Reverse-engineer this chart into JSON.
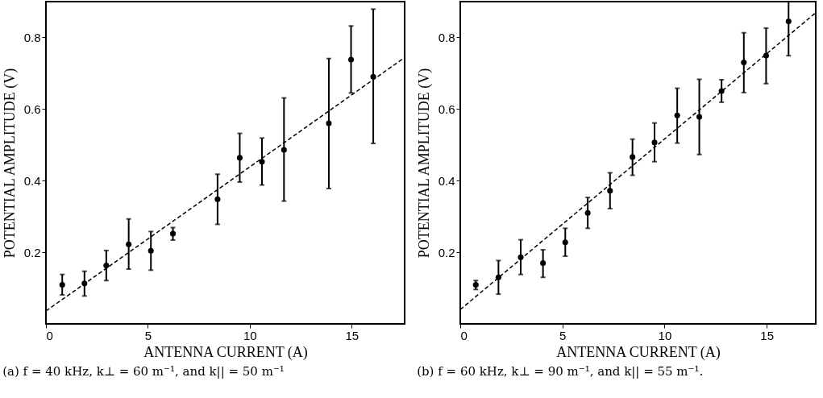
{
  "chart_data": [
    {
      "type": "scatter",
      "title": "(a) f = 40 kHz, k⊥ = 60 m⁻¹, and k|| = 50 m⁻¹",
      "xlabel": "ANTENNA CURRENT (A)",
      "ylabel": "POTENTIAL AMPLITUDE (V)",
      "xlim": [
        0,
        17.6
      ],
      "ylim": [
        0,
        0.9
      ],
      "xticks": [
        0,
        5,
        10,
        15
      ],
      "yticks": [
        0.2,
        0.4,
        0.6,
        0.8
      ],
      "series": [
        {
          "color": "#000000",
          "marker": "circle",
          "x": [
            0.8,
            1.89,
            2.96,
            4.06,
            5.15,
            6.23,
            8.42,
            9.51,
            10.6,
            11.68,
            13.88,
            14.97,
            16.06
          ],
          "values": [
            0.109,
            0.113,
            0.163,
            0.222,
            0.204,
            0.252,
            0.348,
            0.464,
            0.453,
            0.486,
            0.56,
            0.738,
            0.69
          ],
          "errors": [
            [
              0.081,
              0.138
            ],
            [
              0.078,
              0.147
            ],
            [
              0.121,
              0.205
            ],
            [
              0.153,
              0.293
            ],
            [
              0.15,
              0.258
            ],
            [
              0.234,
              0.269
            ],
            [
              0.278,
              0.418
            ],
            [
              0.396,
              0.532
            ],
            [
              0.388,
              0.519
            ],
            [
              0.343,
              0.631
            ],
            [
              0.378,
              0.741
            ],
            [
              0.645,
              0.832
            ],
            [
              0.504,
              0.879
            ]
          ]
        },
        {
          "type": "line",
          "color": "#000000",
          "line_style": "dashed",
          "x": [
            0,
            17.6
          ],
          "values": [
            0.036,
            0.744
          ]
        }
      ]
    },
    {
      "type": "scatter",
      "title": "(b) f = 60 kHz, k⊥ = 90 m⁻¹, and k|| = 55 m⁻¹.",
      "xlabel": "ANTENNA CURRENT (A)",
      "ylabel": "POTENTIAL AMPLITUDE (V)",
      "xlim": [
        0,
        17.4
      ],
      "ylim": [
        0,
        0.9
      ],
      "xticks": [
        0,
        5,
        10,
        15
      ],
      "yticks": [
        0.2,
        0.4,
        0.6,
        0.8
      ],
      "series": [
        {
          "color": "#000000",
          "marker": "circle",
          "x": [
            0.76,
            1.87,
            2.96,
            4.05,
            5.14,
            6.24,
            7.33,
            8.43,
            9.51,
            10.62,
            11.7,
            12.79,
            13.88,
            14.97,
            16.07
          ],
          "values": [
            0.109,
            0.13,
            0.186,
            0.17,
            0.228,
            0.31,
            0.372,
            0.466,
            0.507,
            0.582,
            0.578,
            0.65,
            0.73,
            0.749,
            0.845
          ],
          "errors": [
            [
              0.096,
              0.121
            ],
            [
              0.083,
              0.177
            ],
            [
              0.138,
              0.235
            ],
            [
              0.13,
              0.207
            ],
            [
              0.189,
              0.267
            ],
            [
              0.267,
              0.353
            ],
            [
              0.322,
              0.422
            ],
            [
              0.415,
              0.516
            ],
            [
              0.453,
              0.561
            ],
            [
              0.505,
              0.658
            ],
            [
              0.473,
              0.683
            ],
            [
              0.619,
              0.682
            ],
            [
              0.646,
              0.813
            ],
            [
              0.671,
              0.826
            ],
            [
              0.749,
              0.9
            ]
          ]
        },
        {
          "type": "line",
          "color": "#000000",
          "line_style": "dashed",
          "x": [
            0,
            17.4
          ],
          "values": [
            0.04,
            0.869
          ]
        }
      ]
    }
  ]
}
